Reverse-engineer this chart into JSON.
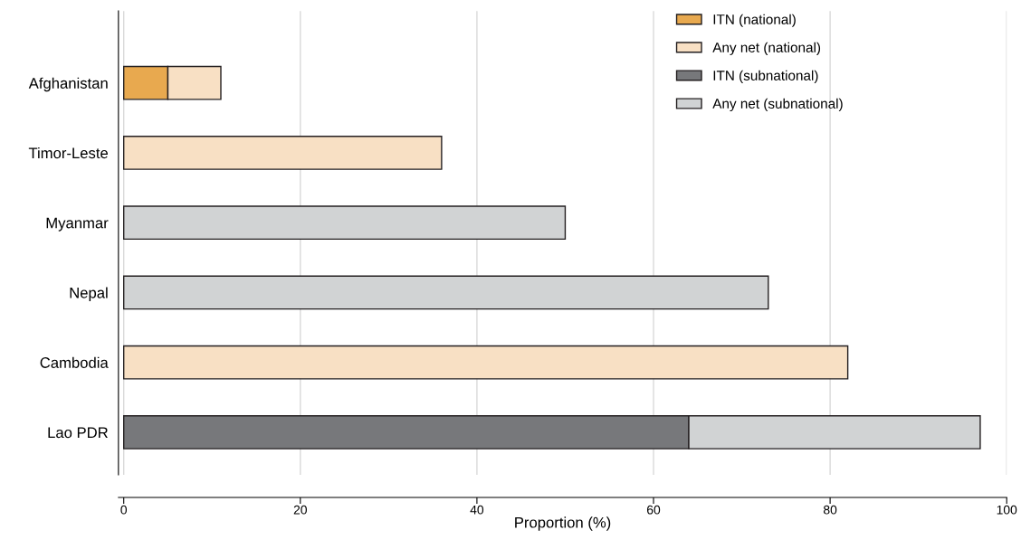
{
  "chart_data": {
    "type": "bar",
    "orientation": "horizontal",
    "stacked": true,
    "categories": [
      "Afghanistan",
      "Timor-Leste",
      "Myanmar",
      "Nepal",
      "Cambodia",
      "Lao PDR"
    ],
    "series": [
      {
        "name": "ITN (national)",
        "color": "#e8a94f",
        "values": [
          5,
          null,
          null,
          null,
          null,
          null
        ]
      },
      {
        "name": "Any net (national)",
        "color": "#f8e0c4",
        "values": [
          6,
          36,
          null,
          null,
          82,
          null
        ]
      },
      {
        "name": "ITN (subnational)",
        "color": "#77787b",
        "values": [
          null,
          null,
          null,
          null,
          null,
          64
        ]
      },
      {
        "name": "Any net (subnational)",
        "color": "#d1d3d4",
        "values": [
          null,
          null,
          50,
          73,
          null,
          33
        ]
      }
    ],
    "xlabel": "Proportion (%)",
    "xlim": [
      -0.6,
      100
    ],
    "xticks": [
      0,
      20,
      40,
      60,
      80,
      100
    ],
    "grid": "x",
    "legend": "top right"
  }
}
